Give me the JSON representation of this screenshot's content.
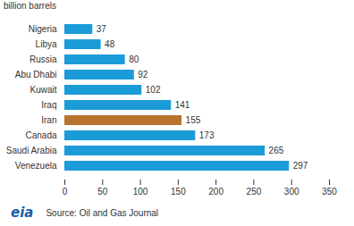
{
  "chart_data": {
    "type": "bar",
    "orientation": "horizontal",
    "title": "billion barrels",
    "categories": [
      "Nigeria",
      "Libya",
      "Russia",
      "Abu Dhabi",
      "Kuwait",
      "Iraq",
      "Iran",
      "Canada",
      "Saudi Arabia",
      "Venezuela"
    ],
    "values": [
      37,
      48,
      80,
      92,
      102,
      141,
      155,
      173,
      265,
      297
    ],
    "colors": [
      "#1b9bd7",
      "#1b9bd7",
      "#1b9bd7",
      "#1b9bd7",
      "#1b9bd7",
      "#1b9bd7",
      "#b8732f",
      "#1b9bd7",
      "#1b9bd7",
      "#1b9bd7"
    ],
    "xlim": [
      0,
      350
    ],
    "xticks": [
      0,
      50,
      100,
      150,
      200,
      250,
      300,
      350
    ],
    "data_labels": true,
    "grid": false,
    "source": "Source: Oil and Gas Journal",
    "logo": "eia"
  }
}
